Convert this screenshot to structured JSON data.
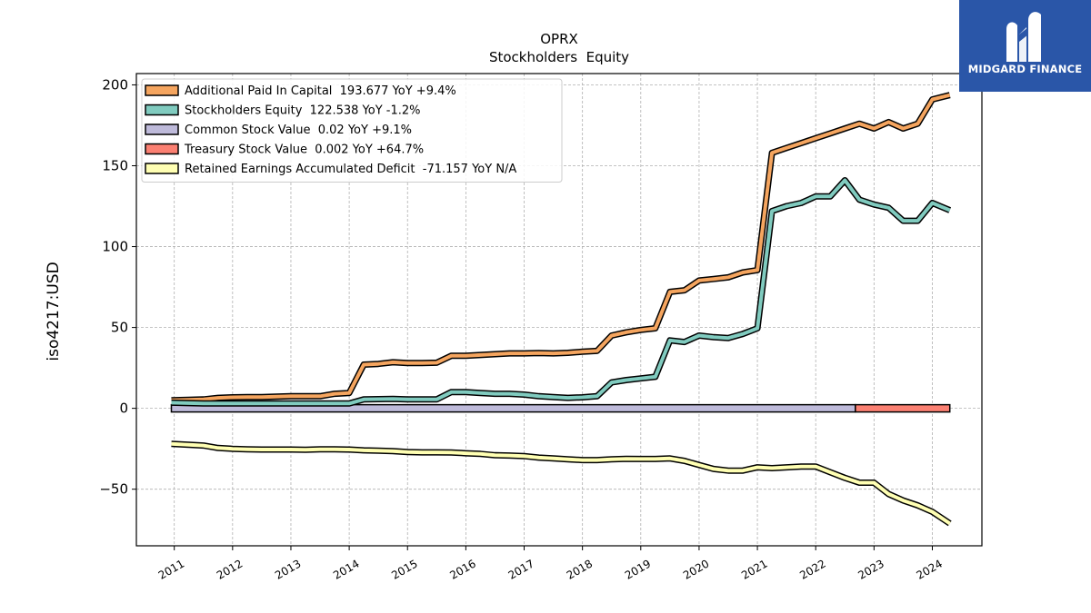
{
  "brand": {
    "name": "MIDGARD FINANCE",
    "bg_color": "#2a56a8",
    "icon": "midgard-logo-icon"
  },
  "chart_data": {
    "type": "line",
    "title": "OPRX",
    "subtitle": "Stockholders  Equity",
    "xlabel": "",
    "ylabel": "iso4217:USD",
    "xlim": [
      2010.35,
      2024.85
    ],
    "ylim": [
      -85,
      207
    ],
    "x_ticks": [
      2011,
      2012,
      2013,
      2014,
      2015,
      2016,
      2017,
      2018,
      2019,
      2020,
      2021,
      2022,
      2023,
      2024
    ],
    "x_tick_labels": [
      "2011",
      "2012",
      "2013",
      "2014",
      "2015",
      "2016",
      "2017",
      "2018",
      "2019",
      "2020",
      "2021",
      "2022",
      "2023",
      "2024"
    ],
    "y_ticks": [
      -50,
      0,
      50,
      100,
      150,
      200
    ],
    "y_tick_labels": [
      "−50",
      "0",
      "50",
      "100",
      "150",
      "200"
    ],
    "grid": true,
    "legend_position": "top-left",
    "series": [
      {
        "name": "Additional Paid In Capital  193.677 YoY +9.4%",
        "color": "#f5a55f",
        "points": [
          [
            2010.95,
            5
          ],
          [
            2011.25,
            5.3
          ],
          [
            2011.5,
            5.5
          ],
          [
            2011.75,
            6.5
          ],
          [
            2012,
            6.8
          ],
          [
            2012.25,
            7
          ],
          [
            2012.5,
            7
          ],
          [
            2012.75,
            7.2
          ],
          [
            2013,
            7.5
          ],
          [
            2013.25,
            7.5
          ],
          [
            2013.5,
            7.5
          ],
          [
            2013.75,
            9
          ],
          [
            2014,
            9.5
          ],
          [
            2014.25,
            27
          ],
          [
            2014.5,
            27.5
          ],
          [
            2014.75,
            28.5
          ],
          [
            2015,
            28
          ],
          [
            2015.25,
            28
          ],
          [
            2015.5,
            28.2
          ],
          [
            2015.75,
            32.5
          ],
          [
            2016,
            32.5
          ],
          [
            2016.25,
            33
          ],
          [
            2016.5,
            33.5
          ],
          [
            2016.75,
            34
          ],
          [
            2017,
            34
          ],
          [
            2017.25,
            34.2
          ],
          [
            2017.5,
            34
          ],
          [
            2017.75,
            34.3
          ],
          [
            2018,
            35
          ],
          [
            2018.25,
            35.5
          ],
          [
            2018.5,
            45
          ],
          [
            2018.75,
            47
          ],
          [
            2019,
            48.5
          ],
          [
            2019.25,
            49.5
          ],
          [
            2019.5,
            72
          ],
          [
            2019.75,
            73
          ],
          [
            2020,
            79
          ],
          [
            2020.25,
            80
          ],
          [
            2020.5,
            81
          ],
          [
            2020.75,
            84
          ],
          [
            2021,
            85.5
          ],
          [
            2021.25,
            158
          ],
          [
            2021.5,
            161
          ],
          [
            2021.75,
            164
          ],
          [
            2022,
            167
          ],
          [
            2022.25,
            170
          ],
          [
            2022.5,
            173
          ],
          [
            2022.75,
            176
          ],
          [
            2023,
            173
          ],
          [
            2023.25,
            177
          ],
          [
            2023.5,
            173
          ],
          [
            2023.75,
            176
          ],
          [
            2024,
            191
          ],
          [
            2024.3,
            193.7
          ]
        ]
      },
      {
        "name": "Stockholders Equity  122.538 YoY -1.2%",
        "color": "#80cbbf",
        "points": [
          [
            2010.95,
            3.5
          ],
          [
            2011.25,
            3.2
          ],
          [
            2011.5,
            3
          ],
          [
            2011.75,
            3
          ],
          [
            2012,
            3
          ],
          [
            2012.25,
            3
          ],
          [
            2012.5,
            3
          ],
          [
            2012.75,
            3
          ],
          [
            2013,
            3
          ],
          [
            2013.25,
            3
          ],
          [
            2013.5,
            3
          ],
          [
            2013.75,
            3
          ],
          [
            2014,
            3
          ],
          [
            2014.25,
            5.5
          ],
          [
            2014.5,
            5.7
          ],
          [
            2014.75,
            5.8
          ],
          [
            2015,
            5.5
          ],
          [
            2015.25,
            5.5
          ],
          [
            2015.5,
            5.5
          ],
          [
            2015.75,
            10
          ],
          [
            2016,
            10
          ],
          [
            2016.25,
            9.5
          ],
          [
            2016.5,
            9
          ],
          [
            2016.75,
            9
          ],
          [
            2017,
            8.5
          ],
          [
            2017.25,
            7.5
          ],
          [
            2017.5,
            7
          ],
          [
            2017.75,
            6.5
          ],
          [
            2018,
            6.8
          ],
          [
            2018.25,
            7.5
          ],
          [
            2018.5,
            16
          ],
          [
            2018.75,
            17.5
          ],
          [
            2019,
            18.5
          ],
          [
            2019.25,
            19.5
          ],
          [
            2019.5,
            42
          ],
          [
            2019.75,
            41
          ],
          [
            2020,
            45
          ],
          [
            2020.25,
            44
          ],
          [
            2020.5,
            43.5
          ],
          [
            2020.75,
            46
          ],
          [
            2021,
            49.5
          ],
          [
            2021.25,
            122
          ],
          [
            2021.5,
            125
          ],
          [
            2021.75,
            127
          ],
          [
            2022,
            131
          ],
          [
            2022.25,
            131
          ],
          [
            2022.5,
            141
          ],
          [
            2022.75,
            129
          ],
          [
            2023,
            126
          ],
          [
            2023.25,
            124
          ],
          [
            2023.5,
            116
          ],
          [
            2023.75,
            116
          ],
          [
            2024,
            127
          ],
          [
            2024.3,
            122.5
          ]
        ]
      },
      {
        "name": "Retained Earnings Accumulated Deficit  -71.157 YoY N/A",
        "color": "#ffffb3",
        "points": [
          [
            2010.95,
            -22
          ],
          [
            2011.25,
            -22.5
          ],
          [
            2011.5,
            -23
          ],
          [
            2011.75,
            -24.5
          ],
          [
            2012,
            -25
          ],
          [
            2012.25,
            -25.3
          ],
          [
            2012.5,
            -25.5
          ],
          [
            2012.75,
            -25.5
          ],
          [
            2013,
            -25.5
          ],
          [
            2013.25,
            -25.6
          ],
          [
            2013.5,
            -25.3
          ],
          [
            2013.75,
            -25.3
          ],
          [
            2014,
            -25.5
          ],
          [
            2014.25,
            -26
          ],
          [
            2014.5,
            -26.2
          ],
          [
            2014.75,
            -26.5
          ],
          [
            2015,
            -27
          ],
          [
            2015.25,
            -27.2
          ],
          [
            2015.5,
            -27.2
          ],
          [
            2015.75,
            -27.3
          ],
          [
            2016,
            -27.8
          ],
          [
            2016.25,
            -28.2
          ],
          [
            2016.5,
            -29
          ],
          [
            2016.75,
            -29.2
          ],
          [
            2017,
            -29.5
          ],
          [
            2017.25,
            -30.5
          ],
          [
            2017.5,
            -31
          ],
          [
            2017.75,
            -31.5
          ],
          [
            2018,
            -32
          ],
          [
            2018.25,
            -32
          ],
          [
            2018.5,
            -31.5
          ],
          [
            2018.75,
            -31.2
          ],
          [
            2019,
            -31.3
          ],
          [
            2019.25,
            -31.3
          ],
          [
            2019.5,
            -31
          ],
          [
            2019.75,
            -32.5
          ],
          [
            2020,
            -35
          ],
          [
            2020.25,
            -37.5
          ],
          [
            2020.5,
            -38.5
          ],
          [
            2020.75,
            -38.5
          ],
          [
            2021,
            -36.5
          ],
          [
            2021.25,
            -37
          ],
          [
            2021.5,
            -36.5
          ],
          [
            2021.75,
            -36
          ],
          [
            2022,
            -36
          ],
          [
            2022.25,
            -39.5
          ],
          [
            2022.5,
            -43
          ],
          [
            2022.75,
            -46
          ],
          [
            2023,
            -46
          ],
          [
            2023.25,
            -53
          ],
          [
            2023.5,
            -57
          ],
          [
            2023.75,
            -60
          ],
          [
            2024,
            -64
          ],
          [
            2024.3,
            -71.2
          ]
        ]
      },
      {
        "name": "Common Stock Value  0.02 YoY +9.1%",
        "color": "#bebada",
        "type": "bar",
        "segment": [
          2010.95,
          2022.68
        ],
        "value": 0.02
      },
      {
        "name": "Treasury Stock Value  0.002 YoY +64.7%",
        "color": "#fb8072",
        "type": "bar",
        "segment": [
          2022.68,
          2024.3
        ],
        "value": 0.002
      }
    ],
    "legend_order": [
      0,
      1,
      3,
      4,
      2
    ]
  }
}
